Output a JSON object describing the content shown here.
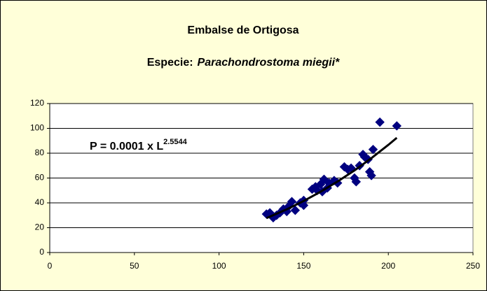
{
  "chart_data": {
    "type": "scatter",
    "title": "Embalse de Ortigosa",
    "subtitle": {
      "prefix": "Especie:",
      "species": "Parachondrostoma miegii*"
    },
    "annotation": {
      "text": "P = 0.0001 x L",
      "exponent": "2.5544"
    },
    "x": [
      128,
      130,
      132,
      134,
      136,
      138,
      140,
      141,
      143,
      145,
      148,
      150,
      150,
      155,
      157,
      158,
      160,
      161,
      162,
      164,
      165,
      168,
      170,
      174,
      176,
      178,
      180,
      181,
      183,
      185,
      186,
      188,
      189,
      190,
      191,
      195,
      205
    ],
    "values": [
      31,
      32,
      28,
      30,
      32,
      35,
      33,
      37,
      41,
      34,
      40,
      38,
      42,
      51,
      53,
      50,
      55,
      49,
      59,
      52,
      56,
      58,
      56,
      69,
      67,
      68,
      60,
      57,
      70,
      79,
      77,
      75,
      65,
      62,
      83,
      105,
      102
    ],
    "color": "#000080",
    "trendline": {
      "x": [
        128,
        140,
        150,
        160,
        170,
        180,
        190,
        200,
        205
      ],
      "values": [
        27.7,
        34.8,
        41.5,
        49.0,
        57.2,
        66.1,
        76.0,
        86.7,
        92.4
      ],
      "color": "#000000"
    },
    "xlim": [
      0,
      250
    ],
    "xticks": [
      0,
      50,
      100,
      150,
      200,
      250
    ],
    "ylim": [
      0,
      120
    ],
    "yticks": [
      0,
      20,
      40,
      60,
      80,
      100,
      120
    ],
    "grid": true
  }
}
